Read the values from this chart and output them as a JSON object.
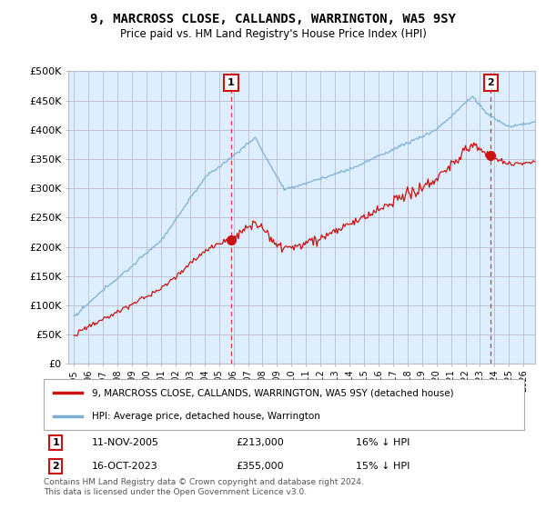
{
  "title": "9, MARCROSS CLOSE, CALLANDS, WARRINGTON, WA5 9SY",
  "subtitle": "Price paid vs. HM Land Registry's House Price Index (HPI)",
  "yticks": [
    0,
    50000,
    100000,
    150000,
    200000,
    250000,
    300000,
    350000,
    400000,
    450000,
    500000
  ],
  "ytick_labels": [
    "£0",
    "£50K",
    "£100K",
    "£150K",
    "£200K",
    "£250K",
    "£300K",
    "£350K",
    "£400K",
    "£450K",
    "£500K"
  ],
  "hpi_color": "#7bafd4",
  "price_color": "#cc1111",
  "marker1_date": "11-NOV-2005",
  "marker1_price": 213000,
  "marker1_hpi_pct": "16% ↓ HPI",
  "marker2_date": "16-OCT-2023",
  "marker2_price": 355000,
  "marker2_hpi_pct": "15% ↓ HPI",
  "legend_label1": "9, MARCROSS CLOSE, CALLANDS, WARRINGTON, WA5 9SY (detached house)",
  "legend_label2": "HPI: Average price, detached house, Warrington",
  "footer": "Contains HM Land Registry data © Crown copyright and database right 2024.\nThis data is licensed under the Open Government Licence v3.0.",
  "bg_color": "#ffffff",
  "plot_bg_color": "#ddeeff",
  "grid_color": "#bbbbcc"
}
